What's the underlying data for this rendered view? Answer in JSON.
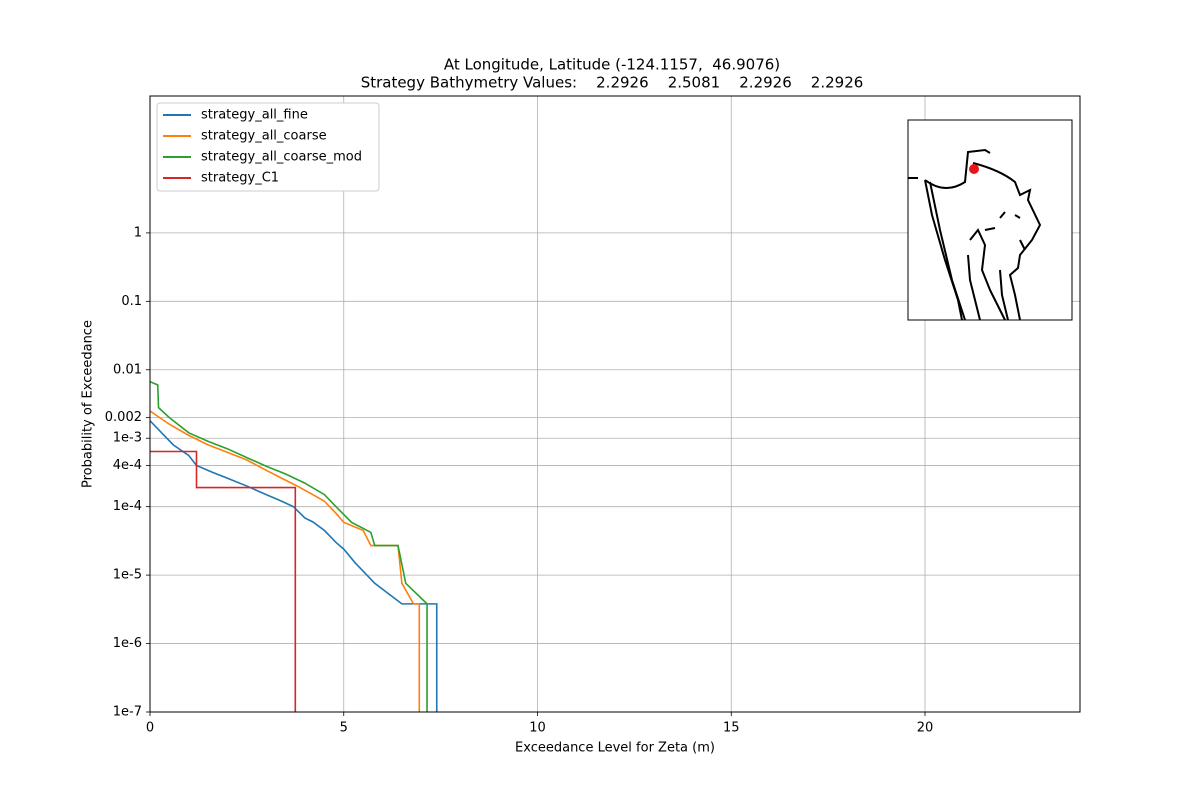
{
  "chart_data": {
    "type": "line",
    "title": "At Longitude, Latitude (-124.1157,  46.9076)",
    "subtitle": "Strategy Bathymetry Values:    2.2926    2.5081    2.2926    2.2926",
    "x_label": "Exceedance Level for Zeta (m)",
    "y_label": "Probability of Exceedance",
    "xlim": [
      0,
      24
    ],
    "xticks": [
      0,
      5,
      10,
      15,
      20
    ],
    "ylim": [
      1e-07,
      100
    ],
    "y_scale": "log",
    "yticks": [
      {
        "value": 1e-07,
        "label": "1e-7"
      },
      {
        "value": 1e-06,
        "label": "1e-6"
      },
      {
        "value": 1e-05,
        "label": "1e-5"
      },
      {
        "value": 0.0001,
        "label": "1e-4"
      },
      {
        "value": 0.0004,
        "label": "4e-4"
      },
      {
        "value": 0.001,
        "label": "1e-3"
      },
      0.002,
      0.01,
      0.1,
      1
    ],
    "grid": true,
    "legend": "upper left",
    "series": [
      {
        "name": "strategy_all_fine",
        "color": "#1f77b4",
        "x": [
          0,
          0.3,
          0.6,
          1,
          1.2,
          1.6,
          2,
          2.5,
          3,
          3.4,
          3.7,
          4,
          4.2,
          4.5,
          4.8,
          5,
          5.3,
          5.3,
          5.8,
          5.8,
          6.5,
          6.5,
          7.4,
          7.4
        ],
        "values": [
          0.0018,
          0.0012,
          0.0008,
          0.00056,
          0.0004,
          0.00032,
          0.00026,
          0.0002,
          0.00015,
          0.00012,
          0.0001,
          6.8e-05,
          6e-05,
          4.5e-05,
          3e-05,
          2.4e-05,
          1.5e-05,
          1.5e-05,
          7.6e-06,
          7.6e-06,
          3.8e-06,
          3.8e-06,
          3.8e-06,
          1e-07
        ]
      },
      {
        "name": "strategy_all_coarse",
        "color": "#ff7f0e",
        "x": [
          0,
          0.5,
          1,
          1.5,
          2,
          2.5,
          3,
          3.4,
          3.8,
          4.2,
          4.5,
          4.8,
          5,
          5.5,
          5.7,
          6.4,
          6.5,
          6.8,
          6.95,
          6.95
        ],
        "values": [
          0.0025,
          0.0016,
          0.0011,
          0.0008,
          0.00062,
          0.00048,
          0.00034,
          0.00026,
          0.0002,
          0.00015,
          0.00012,
          8e-05,
          5.9e-05,
          4.5e-05,
          2.7e-05,
          2.7e-05,
          7.6e-06,
          3.8e-06,
          3.8e-06,
          1e-07
        ]
      },
      {
        "name": "strategy_all_coarse_mod",
        "color": "#2ca02c",
        "x": [
          0,
          0.2,
          0.22,
          0.5,
          1,
          1.5,
          2,
          2.5,
          3,
          3.5,
          4,
          4.5,
          4.8,
          5.2,
          5.7,
          5.8,
          6.4,
          6.6,
          7.15,
          7.15
        ],
        "values": [
          0.0067,
          0.006,
          0.0028,
          0.002,
          0.0012,
          0.0009,
          0.0007,
          0.00052,
          0.00039,
          0.0003,
          0.00022,
          0.00015,
          0.0001,
          5.9e-05,
          4.2e-05,
          2.7e-05,
          2.7e-05,
          7.6e-06,
          3.8e-06,
          1e-07
        ]
      },
      {
        "name": "strategy_C1",
        "color": "#d62728",
        "x": [
          0,
          1.2,
          1.2,
          3.75,
          3.75
        ],
        "values": [
          0.00064,
          0.00064,
          0.00019,
          0.00019,
          1e-07
        ]
      }
    ]
  }
}
